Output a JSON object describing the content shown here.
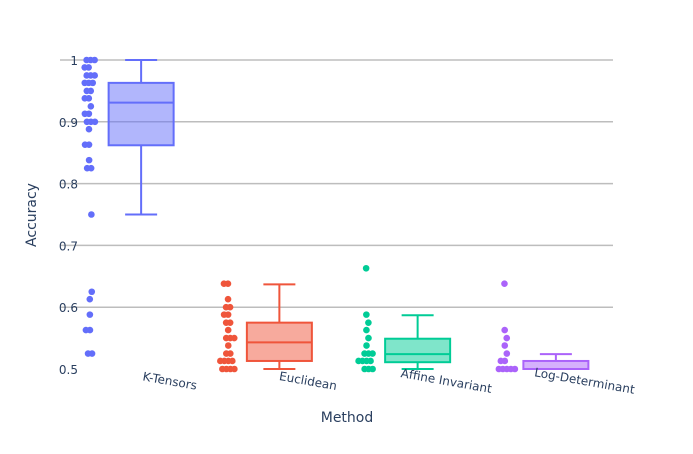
{
  "chart_data": {
    "type": "box",
    "title": "",
    "xlabel": "Method",
    "ylabel": "Accuracy",
    "ylim": [
      0.5,
      1.0
    ],
    "yticks": [
      0.5,
      0.6,
      0.7,
      0.8,
      0.9,
      1
    ],
    "ytick_labels": [
      "0.5",
      "0.6",
      "0.7",
      "0.8",
      "0.9",
      "1"
    ],
    "grid": true,
    "categories": [
      "K-Tensors",
      "Euclidean",
      "Affine Invariant",
      "Log-Determinant"
    ],
    "series": [
      {
        "name": "K-Tensors",
        "color": "#636efa",
        "stats": {
          "min": 0.75,
          "q1": 0.862,
          "median": 0.931,
          "q3": 0.963,
          "max": 1.0
        },
        "points": [
          1,
          1,
          1,
          0.988,
          0.988,
          0.975,
          0.975,
          0.975,
          0.963,
          0.963,
          0.963,
          0.95,
          0.95,
          0.938,
          0.938,
          0.925,
          0.913,
          0.913,
          0.9,
          0.9,
          0.9,
          0.888,
          0.863,
          0.863,
          0.838,
          0.825,
          0.825,
          0.75,
          0.625,
          0.613,
          0.588,
          0.563,
          0.563,
          0.525,
          0.525
        ]
      },
      {
        "name": "Euclidean",
        "color": "#EF553B",
        "stats": {
          "min": 0.5,
          "q1": 0.513,
          "median": 0.543,
          "q3": 0.575,
          "max": 0.637
        },
        "points": [
          0.638,
          0.638,
          0.613,
          0.6,
          0.6,
          0.588,
          0.588,
          0.575,
          0.575,
          0.563,
          0.55,
          0.55,
          0.55,
          0.538,
          0.525,
          0.525,
          0.513,
          0.513,
          0.513,
          0.513,
          0.5,
          0.5,
          0.5,
          0.5
        ]
      },
      {
        "name": "Affine Invariant",
        "color": "#00cc96",
        "stats": {
          "min": 0.5,
          "q1": 0.511,
          "median": 0.524,
          "q3": 0.549,
          "max": 0.587
        },
        "points": [
          0.663,
          0.588,
          0.575,
          0.563,
          0.55,
          0.538,
          0.525,
          0.525,
          0.525,
          0.513,
          0.513,
          0.513,
          0.513,
          0.5,
          0.5,
          0.5
        ]
      },
      {
        "name": "Log-Determinant",
        "color": "#ab63fa",
        "stats": {
          "min": 0.5,
          "q1": 0.5,
          "median": 0.5,
          "q3": 0.513,
          "max": 0.524
        },
        "points": [
          0.638,
          0.563,
          0.55,
          0.538,
          0.525,
          0.513,
          0.513,
          0.5,
          0.5,
          0.5,
          0.5,
          0.5
        ]
      }
    ]
  }
}
